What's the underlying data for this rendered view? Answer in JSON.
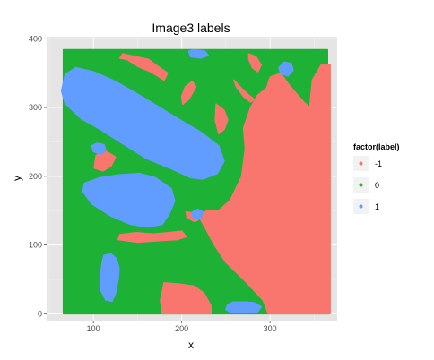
{
  "chart_data": {
    "type": "scatter",
    "title": "Image3 labels",
    "xlabel": "x",
    "ylabel": "y",
    "xlim": [
      47,
      376
    ],
    "ylim": [
      -10,
      403
    ],
    "xticks": [
      100,
      200,
      300
    ],
    "yticks": [
      0,
      100,
      200,
      300,
      400
    ],
    "grid": true,
    "legend": {
      "title": "factor(label)",
      "placement": "right",
      "entries": [
        {
          "label": "-1",
          "color": "#F8766D"
        },
        {
          "label": "0",
          "color": "#2EB82E"
        },
        {
          "label": "1",
          "color": "#619CFF"
        }
      ]
    },
    "series": [
      {
        "label": "0",
        "color": "#1DB135",
        "regions": [
          [
            [
              66,
              384
            ],
            [
              365,
              384
            ],
            [
              365,
              0
            ],
            [
              66,
              0
            ]
          ]
        ]
      },
      {
        "label": "-1",
        "color": "#F8766D",
        "regions": [
          [
            [
              286,
              318
            ],
            [
              296,
              328
            ],
            [
              300,
              344
            ],
            [
              312,
              350
            ],
            [
              322,
              332
            ],
            [
              338,
              308
            ],
            [
              345,
              300
            ],
            [
              348,
              340
            ],
            [
              358,
              362
            ],
            [
              368,
              362
            ],
            [
              368,
              0
            ],
            [
              298,
              0
            ],
            [
              292,
              20
            ],
            [
              270,
              50
            ],
            [
              250,
              75
            ],
            [
              237,
              100
            ],
            [
              228,
              122
            ],
            [
              220,
              140
            ],
            [
              228,
              150
            ],
            [
              242,
              150
            ],
            [
              255,
              165
            ],
            [
              268,
              200
            ],
            [
              272,
              240
            ],
            [
              270,
              270
            ],
            [
              278,
              300
            ]
          ],
          [
            [
              180,
              45
            ],
            [
              198,
              43
            ],
            [
              214,
              40
            ],
            [
              225,
              30
            ],
            [
              233,
              12
            ],
            [
              233,
              0
            ],
            [
              178,
              0
            ],
            [
              176,
              20
            ]
          ],
          [
            [
              130,
              115
            ],
            [
              148,
              118
            ],
            [
              168,
              116
            ],
            [
              185,
              118
            ],
            [
              200,
              120
            ],
            [
              205,
              112
            ],
            [
              195,
              108
            ],
            [
              170,
              106
            ],
            [
              150,
              104
            ],
            [
              128,
              108
            ]
          ],
          [
            [
              205,
              148
            ],
            [
              215,
              146
            ],
            [
              222,
              140
            ],
            [
              215,
              134
            ],
            [
              206,
              140
            ]
          ],
          [
            [
              101,
              212
            ],
            [
              111,
              208
            ],
            [
              120,
              215
            ],
            [
              125,
              228
            ],
            [
              112,
              238
            ],
            [
              103,
              230
            ]
          ],
          [
            [
              133,
              378
            ],
            [
              148,
              374
            ],
            [
              162,
              370
            ],
            [
              175,
              358
            ],
            [
              184,
              350
            ],
            [
              180,
              340
            ],
            [
              165,
              352
            ],
            [
              150,
              360
            ],
            [
              138,
              370
            ],
            [
              130,
              372
            ]
          ],
          [
            [
              201,
              305
            ],
            [
              208,
              312
            ],
            [
              216,
              330
            ],
            [
              212,
              338
            ],
            [
              204,
              330
            ],
            [
              200,
              316
            ]
          ],
          [
            [
              239,
              305
            ],
            [
              248,
              296
            ],
            [
              252,
              282
            ],
            [
              248,
              268
            ],
            [
              242,
              262
            ],
            [
              238,
              282
            ]
          ],
          [
            [
              259,
              340
            ],
            [
              266,
              330
            ],
            [
              276,
              318
            ],
            [
              282,
              312
            ],
            [
              278,
              308
            ],
            [
              270,
              316
            ],
            [
              262,
              330
            ]
          ],
          [
            [
              276,
              378
            ],
            [
              284,
              374
            ],
            [
              290,
              362
            ],
            [
              286,
              352
            ],
            [
              280,
              358
            ],
            [
              276,
              370
            ]
          ]
        ]
      },
      {
        "label": "1",
        "color": "#619CFF",
        "regions": [
          [
            [
              68,
              348
            ],
            [
              80,
              358
            ],
            [
              100,
              352
            ],
            [
              125,
              338
            ],
            [
              152,
              318
            ],
            [
              175,
              300
            ],
            [
              198,
              282
            ],
            [
              222,
              264
            ],
            [
              242,
              244
            ],
            [
              248,
              222
            ],
            [
              240,
              204
            ],
            [
              224,
              196
            ],
            [
              210,
              198
            ],
            [
              190,
              210
            ],
            [
              160,
              226
            ],
            [
              130,
              250
            ],
            [
              108,
              268
            ],
            [
              86,
              284
            ],
            [
              68,
              306
            ],
            [
              64,
              324
            ]
          ],
          [
            [
              90,
              190
            ],
            [
              108,
              198
            ],
            [
              128,
              202
            ],
            [
              152,
              204
            ],
            [
              170,
              198
            ],
            [
              188,
              182
            ],
            [
              192,
              164
            ],
            [
              186,
              146
            ],
            [
              178,
              130
            ],
            [
              162,
              126
            ],
            [
              142,
              130
            ],
            [
              120,
              142
            ],
            [
              98,
              160
            ],
            [
              88,
              178
            ]
          ],
          [
            [
              112,
              85
            ],
            [
              120,
              87
            ],
            [
              126,
              80
            ],
            [
              129,
              66
            ],
            [
              128,
              50
            ],
            [
              125,
              30
            ],
            [
              121,
              18
            ],
            [
              114,
              20
            ],
            [
              108,
              35
            ],
            [
              108,
              55
            ],
            [
              110,
              75
            ]
          ],
          [
            [
              252,
              13
            ],
            [
              258,
              17
            ],
            [
              272,
              17
            ],
            [
              282,
              16
            ],
            [
              290,
              10
            ],
            [
              286,
              3
            ],
            [
              272,
              2
            ],
            [
              256,
              2
            ],
            [
              250,
              6
            ]
          ],
          [
            [
              98,
              244
            ],
            [
              104,
              248
            ],
            [
              112,
              246
            ],
            [
              114,
              238
            ],
            [
              108,
              232
            ],
            [
              100,
              236
            ]
          ],
          [
            [
              310,
              358
            ],
            [
              316,
              366
            ],
            [
              324,
              364
            ],
            [
              326,
              354
            ],
            [
              320,
              346
            ],
            [
              312,
              350
            ]
          ],
          [
            [
              208,
              382
            ],
            [
              214,
              384
            ],
            [
              226,
              382
            ],
            [
              230,
              376
            ],
            [
              222,
              372
            ],
            [
              210,
              374
            ]
          ],
          [
            [
              212,
              148
            ],
            [
              218,
              152
            ],
            [
              224,
              148
            ],
            [
              222,
              140
            ],
            [
              216,
              138
            ],
            [
              212,
              142
            ]
          ]
        ]
      }
    ]
  }
}
